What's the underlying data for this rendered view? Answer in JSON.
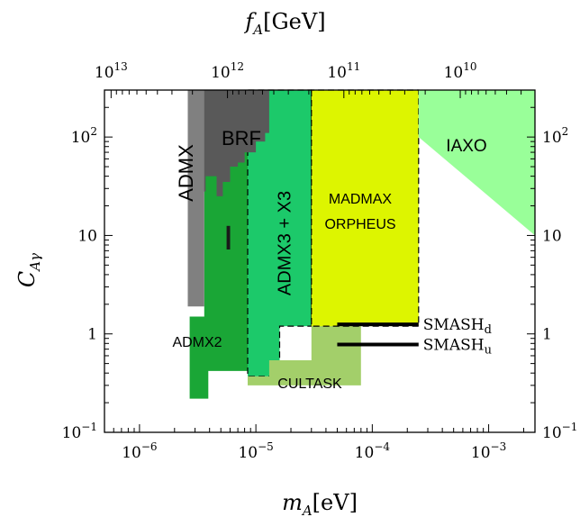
{
  "chart_data": {
    "type": "area",
    "title": "",
    "xlabel": "m_A [eV]",
    "ylabel": "C_Aγ",
    "top_xlabel": "f_A [GeV]",
    "xscale": "log",
    "yscale": "log",
    "xlim": [
      5e-07,
      0.0025
    ],
    "ylim": [
      0.1,
      300
    ],
    "grid": false,
    "x_ticks": [
      {
        "value": 1e-06,
        "base": "10",
        "exp": "−6"
      },
      {
        "value": 1e-05,
        "base": "10",
        "exp": "−5"
      },
      {
        "value": 0.0001,
        "base": "10",
        "exp": "−4"
      },
      {
        "value": 0.001,
        "base": "10",
        "exp": "−3"
      }
    ],
    "top_ticks": [
      {
        "fa": 10000000000000.0,
        "m": 5.7e-07,
        "base": "10",
        "exp": "13"
      },
      {
        "fa": 1000000000000.0,
        "m": 5.7e-06,
        "base": "10",
        "exp": "12"
      },
      {
        "fa": 100000000000.0,
        "m": 5.7e-05,
        "base": "10",
        "exp": "11"
      },
      {
        "fa": 10000000000.0,
        "m": 0.00057,
        "base": "10",
        "exp": "10"
      }
    ],
    "y_ticks": [
      {
        "value": 0.1,
        "base": "10",
        "exp": "−1"
      },
      {
        "value": 1,
        "base": "1",
        "exp": ""
      },
      {
        "value": 10,
        "base": "10",
        "exp": ""
      },
      {
        "value": 100,
        "base": "10",
        "exp": "2"
      }
    ],
    "top_axis": {
      "label_main": "f",
      "label_sub": "A",
      "label_unit": "[GeV]"
    },
    "bottom_axis": {
      "label_main": "m",
      "label_sub": "A",
      "label_unit": "[eV]"
    },
    "left_axis": {
      "label_main": "C",
      "label_sub": "Aγ"
    },
    "regions": [
      {
        "name": "ADMX2",
        "fill": "#1aa636",
        "dashed": false,
        "label": "ADMX2",
        "label_rot": 0,
        "points": [
          [
            3.6e-06,
            300
          ],
          [
            3.6e-06,
            1.5
          ],
          [
            2.7e-06,
            1.5
          ],
          [
            2.7e-06,
            0.22
          ],
          [
            3.9e-06,
            0.22
          ],
          [
            3.9e-06,
            0.42
          ],
          [
            8.5e-06,
            0.42
          ],
          [
            8.5e-06,
            300
          ]
        ]
      },
      {
        "name": "ADMX3",
        "fill": "#1cc96a",
        "dashed": true,
        "label": "ADMX3 + X3",
        "label_rot": -90,
        "points": [
          [
            8.5e-06,
            300
          ],
          [
            8.5e-06,
            0.37
          ],
          [
            1.6e-05,
            0.37
          ],
          [
            1.6e-05,
            1.2
          ],
          [
            3e-05,
            1.2
          ],
          [
            3e-05,
            300
          ]
        ]
      },
      {
        "name": "CULTASK",
        "fill": "#a3cf6a",
        "dashed": false,
        "label": "CULTASK",
        "label_rot": 0,
        "points": [
          [
            8.5e-06,
            0.3
          ],
          [
            8e-05,
            0.3
          ],
          [
            8e-05,
            1.25
          ],
          [
            3e-05,
            1.25
          ],
          [
            3e-05,
            0.54
          ],
          [
            1.3e-05,
            0.54
          ],
          [
            1.3e-05,
            0.37
          ],
          [
            8.5e-06,
            0.37
          ]
        ]
      },
      {
        "name": "MADMAX",
        "fill": "#ddf500",
        "dashed": true,
        "label": "MADMAX",
        "label2": "ORPHEUS",
        "label_rot": 0,
        "points": [
          [
            3e-05,
            300
          ],
          [
            3e-05,
            1.2
          ],
          [
            0.00025,
            1.2
          ],
          [
            0.00025,
            300
          ]
        ]
      },
      {
        "name": "BRF",
        "fill": "#595959",
        "dashed": false,
        "label": "BRF",
        "label_rot": 0,
        "points": [
          [
            3.4e-06,
            300
          ],
          [
            3.4e-06,
            28
          ],
          [
            3.7e-06,
            28
          ],
          [
            3.7e-06,
            40
          ],
          [
            4.6e-06,
            40
          ],
          [
            4.6e-06,
            25
          ],
          [
            5.2e-06,
            25
          ],
          [
            5.2e-06,
            35
          ],
          [
            6e-06,
            35
          ],
          [
            6e-06,
            50
          ],
          [
            7e-06,
            50
          ],
          [
            7e-06,
            55
          ],
          [
            8e-06,
            55
          ],
          [
            8e-06,
            70
          ],
          [
            1e-05,
            70
          ],
          [
            1e-05,
            90
          ],
          [
            1.2e-05,
            90
          ],
          [
            1.2e-05,
            110
          ],
          [
            1.3e-05,
            110
          ],
          [
            1.3e-05,
            300
          ]
        ]
      },
      {
        "name": "ADMX",
        "fill": "#808080",
        "dashed": false,
        "label": "ADMX",
        "label_rot": -90,
        "points": [
          [
            2.6e-06,
            300
          ],
          [
            2.6e-06,
            1.9
          ],
          [
            3.6e-06,
            1.9
          ],
          [
            3.6e-06,
            300
          ]
        ]
      },
      {
        "name": "IAXO",
        "fill": "#99ff99",
        "dashed": false,
        "label": "IAXO",
        "label_rot": 0,
        "points": [
          [
            0.00025,
            300
          ],
          [
            0.00025,
            100
          ],
          [
            0.0025,
            10
          ],
          [
            0.0025,
            300
          ]
        ]
      }
    ],
    "black_bar": {
      "points": [
        [
          5.6e-06,
          12.5
        ],
        [
          6e-06,
          12.5
        ],
        [
          6e-06,
          7.2
        ],
        [
          5.6e-06,
          7.2
        ]
      ]
    },
    "lines": [
      {
        "name": "SMASH_d",
        "label": "SMASH",
        "sub": "d",
        "x": [
          5e-05,
          0.00025
        ],
        "y": 1.25
      },
      {
        "name": "SMASH_u",
        "label": "SMASH",
        "sub": "u",
        "x": [
          5e-05,
          0.00025
        ],
        "y": 0.78
      }
    ]
  },
  "colors": {
    "axis": "#000000",
    "dash": "#000000",
    "label_light": "#ffffff",
    "label_dark": "#000000"
  }
}
